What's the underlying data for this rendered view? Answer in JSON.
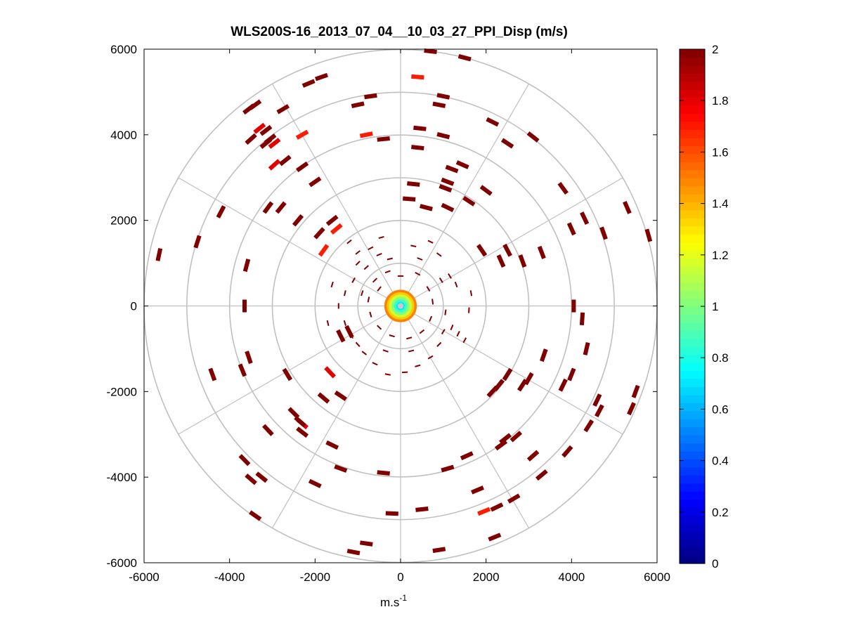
{
  "chart_data": {
    "type": "polar-ppi-scatter",
    "title": "WLS200S-16_2013_07_04__10_03_27_PPI_Disp (m/s)",
    "xlabel": "m.s",
    "xlabel_superscript": "-1",
    "ylabel": "",
    "xlim": [
      -6000,
      6000
    ],
    "ylim": [
      -6000,
      6000
    ],
    "xticks": [
      -6000,
      -4000,
      -2000,
      0,
      2000,
      4000,
      6000
    ],
    "yticks": [
      6000,
      4000,
      2000,
      0,
      -2000,
      -4000,
      -6000
    ],
    "xtick_labels": [
      "-6000",
      "-4000",
      "-2000",
      "0",
      "2000",
      "4000",
      "6000"
    ],
    "ytick_labels": [
      "6000",
      "4000",
      "2000",
      "0",
      "-2000",
      "-4000",
      "-6000"
    ],
    "polar_grid": {
      "ring_radii": [
        1000,
        2000,
        3000,
        4000,
        5000,
        6000
      ],
      "spoke_angles_deg": [
        0,
        30,
        60,
        90,
        120,
        150,
        180,
        210,
        240,
        270,
        300,
        330
      ]
    },
    "colorbar": {
      "label_position": "right",
      "range": [
        0,
        2
      ],
      "ticks": [
        0,
        0.2,
        0.4,
        0.6,
        0.8,
        1,
        1.2,
        1.4,
        1.6,
        1.8,
        2
      ],
      "tick_labels": [
        "0",
        "0.2",
        "0.4",
        "0.6",
        "0.8",
        "1",
        "1.2",
        "1.4",
        "1.6",
        "1.8",
        "2"
      ],
      "colormap": "jet"
    },
    "outer_points": [
      [
        -5650,
        1200,
        2
      ],
      [
        -4750,
        1500,
        2
      ],
      [
        -4200,
        2200,
        2
      ],
      [
        -3650,
        0,
        2
      ],
      [
        -3600,
        950,
        2
      ],
      [
        -3150,
        3800,
        2
      ],
      [
        -3150,
        4100,
        2
      ],
      [
        -3050,
        3900,
        2
      ],
      [
        -3300,
        4150,
        1.8
      ],
      [
        -2950,
        3800,
        1.8
      ],
      [
        -2950,
        3300,
        1.8
      ],
      [
        -2300,
        4000,
        1.7
      ],
      [
        -3550,
        4600,
        2
      ],
      [
        -3400,
        4700,
        2
      ],
      [
        -2750,
        4600,
        2
      ],
      [
        -2150,
        5200,
        2
      ],
      [
        -1850,
        5350,
        2
      ],
      [
        -700,
        4900,
        2
      ],
      [
        -800,
        4000,
        1.7
      ],
      [
        -400,
        3900,
        2
      ],
      [
        -1000,
        4700,
        2
      ],
      [
        400,
        5350,
        1.7
      ],
      [
        700,
        5950,
        2
      ],
      [
        1500,
        5800,
        2
      ],
      [
        1000,
        4900,
        2
      ],
      [
        900,
        4700,
        2
      ],
      [
        450,
        4150,
        2
      ],
      [
        1000,
        3980,
        2
      ],
      [
        400,
        3700,
        2
      ],
      [
        1450,
        3300,
        2
      ],
      [
        1200,
        3200,
        2
      ],
      [
        2150,
        4300,
        2
      ],
      [
        2500,
        3800,
        2
      ],
      [
        3100,
        3950,
        2
      ],
      [
        3800,
        2750,
        2
      ],
      [
        4300,
        2050,
        2
      ],
      [
        5300,
        2300,
        2
      ],
      [
        5800,
        1650,
        2
      ],
      [
        4750,
        1700,
        2
      ],
      [
        4000,
        1800,
        2
      ],
      [
        3300,
        1250,
        2
      ],
      [
        2850,
        1050,
        2
      ],
      [
        2350,
        1050,
        2
      ],
      [
        4050,
        0,
        2
      ],
      [
        4250,
        -300,
        2
      ],
      [
        4350,
        -1000,
        2
      ],
      [
        4000,
        -1600,
        2
      ],
      [
        3800,
        -1850,
        2
      ],
      [
        3350,
        -1150,
        2
      ],
      [
        3000,
        -1700,
        2
      ],
      [
        2850,
        -1850,
        2
      ],
      [
        2500,
        -1600,
        2
      ],
      [
        2300,
        -1850,
        2
      ],
      [
        5500,
        -2000,
        2
      ],
      [
        5400,
        -2400,
        2
      ],
      [
        4600,
        -2200,
        2
      ],
      [
        4650,
        -2450,
        2
      ],
      [
        4400,
        -2800,
        2
      ],
      [
        3900,
        -3400,
        2
      ],
      [
        3300,
        -3950,
        2
      ],
      [
        2450,
        -3100,
        2
      ],
      [
        2350,
        -3250,
        2
      ],
      [
        1550,
        -3500,
        2
      ],
      [
        1100,
        -3800,
        2
      ],
      [
        1800,
        -4300,
        2
      ],
      [
        2650,
        -4500,
        2
      ],
      [
        2250,
        -4700,
        2
      ],
      [
        1950,
        -4800,
        1.7
      ],
      [
        2200,
        -5400,
        2
      ],
      [
        900,
        -5700,
        2
      ],
      [
        -800,
        -5550,
        2
      ],
      [
        -1100,
        -5750,
        2
      ],
      [
        -200,
        -4850,
        2
      ],
      [
        500,
        -4750,
        2
      ],
      [
        -400,
        -3900,
        2
      ],
      [
        -1400,
        -3800,
        2
      ],
      [
        -1600,
        -3250,
        2
      ],
      [
        -2000,
        -4150,
        2
      ],
      [
        -2300,
        -2750,
        1.8
      ],
      [
        -2500,
        -2500,
        2
      ],
      [
        -2350,
        -2700,
        2
      ],
      [
        -3100,
        -2900,
        2
      ],
      [
        -3500,
        -4050,
        2
      ],
      [
        -3650,
        -3600,
        2
      ],
      [
        -3250,
        -4000,
        2
      ],
      [
        -3400,
        -4900,
        2
      ],
      [
        -2300,
        -2950,
        2
      ],
      [
        -2650,
        -1600,
        2
      ],
      [
        -3700,
        -1500,
        2
      ],
      [
        -3550,
        -1200,
        2
      ],
      [
        -4400,
        -1600,
        2
      ],
      [
        -1650,
        -1550,
        1.8
      ],
      [
        -1400,
        -2100,
        2
      ],
      [
        -1800,
        -2150,
        2
      ],
      [
        -1400,
        -700,
        2
      ],
      [
        -1200,
        -600,
        2
      ],
      [
        -1600,
        2000,
        2
      ],
      [
        -1900,
        1700,
        2
      ],
      [
        -2400,
        2000,
        2
      ],
      [
        -2000,
        2900,
        2
      ],
      [
        -2700,
        3400,
        2
      ],
      [
        -2300,
        3250,
        2
      ],
      [
        -2800,
        2300,
        2
      ],
      [
        -1500,
        1800,
        1.7
      ],
      [
        -1800,
        1300,
        1.7
      ],
      [
        200,
        2500,
        2
      ],
      [
        300,
        2850,
        2
      ],
      [
        600,
        2300,
        2
      ],
      [
        1100,
        2900,
        2
      ],
      [
        1050,
        2750,
        2
      ],
      [
        2500,
        1300,
        2
      ],
      [
        1900,
        1300,
        2
      ],
      [
        1100,
        2300,
        2
      ],
      [
        1600,
        2450,
        2
      ],
      [
        2000,
        2700,
        2
      ],
      [
        -3500,
        3900,
        2
      ],
      [
        -3100,
        2300,
        2
      ],
      [
        2150,
        -2000,
        2
      ],
      [
        2700,
        -3050,
        2
      ],
      [
        3100,
        -3500,
        2
      ]
    ],
    "inner_points": [
      [
        -1200,
        1500
      ],
      [
        -1000,
        1250
      ],
      [
        -700,
        1350
      ],
      [
        -450,
        1600
      ],
      [
        -250,
        1100
      ],
      [
        300,
        1400
      ],
      [
        450,
        1100
      ],
      [
        700,
        1500
      ],
      [
        900,
        1200
      ],
      [
        1150,
        700
      ],
      [
        1300,
        500
      ],
      [
        1050,
        -150
      ],
      [
        1200,
        -500
      ],
      [
        1350,
        -650
      ],
      [
        1500,
        -800
      ],
      [
        900,
        -900
      ],
      [
        700,
        -1200
      ],
      [
        400,
        -1400
      ],
      [
        100,
        -1550
      ],
      [
        -300,
        -1600
      ],
      [
        -600,
        -1350
      ],
      [
        -850,
        -1100
      ],
      [
        -1000,
        -900
      ],
      [
        -1150,
        -700
      ],
      [
        -1300,
        -400
      ],
      [
        -1450,
        0
      ],
      [
        -1300,
        300
      ],
      [
        -1100,
        600
      ],
      [
        -800,
        900
      ],
      [
        -500,
        1200
      ],
      [
        -600,
        600
      ],
      [
        -300,
        800
      ],
      [
        0,
        700
      ],
      [
        400,
        750
      ],
      [
        650,
        400
      ],
      [
        750,
        100
      ],
      [
        700,
        -300
      ],
      [
        500,
        -600
      ],
      [
        200,
        -750
      ],
      [
        -200,
        -700
      ],
      [
        -500,
        -500
      ],
      [
        -700,
        -200
      ],
      [
        -750,
        150
      ],
      [
        -500,
        400
      ],
      [
        -1600,
        500
      ],
      [
        -1700,
        -400
      ],
      [
        1650,
        300
      ],
      [
        1600,
        -100
      ],
      [
        -900,
        300
      ],
      [
        950,
        600
      ],
      [
        -350,
        -1050
      ],
      [
        250,
        -1050
      ],
      [
        -1000,
        1000
      ],
      [
        1000,
        -600
      ]
    ],
    "center_blob": {
      "x": 0,
      "y": 0,
      "radius": 380
    }
  }
}
